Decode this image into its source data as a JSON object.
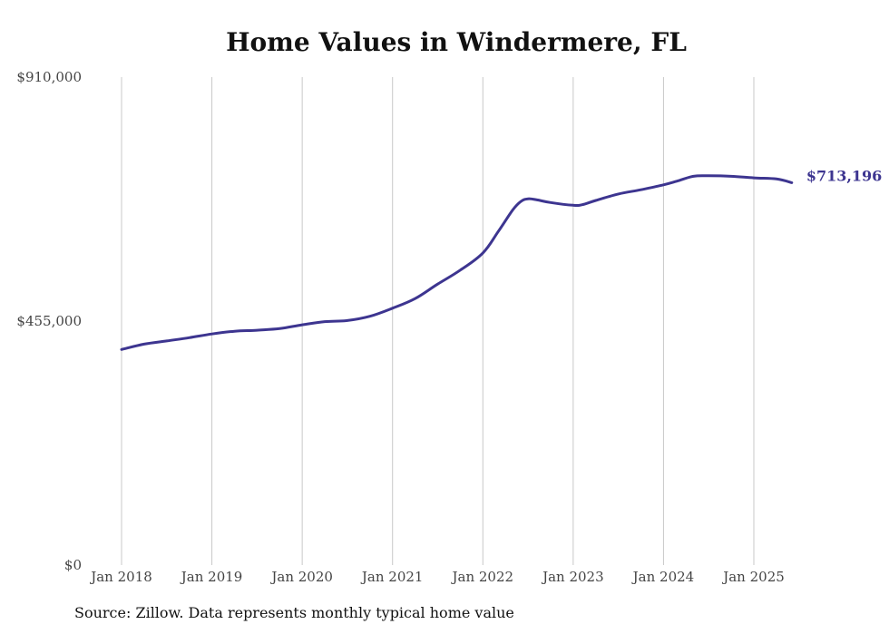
{
  "chart_data": {
    "type": "line",
    "title": "Home Values in Windermere, FL",
    "xlabel": "",
    "ylabel": "",
    "ylim": [
      0,
      910000
    ],
    "y_ticks": [
      {
        "value": 0,
        "label": "$0"
      },
      {
        "value": 455000,
        "label": "$455,000"
      },
      {
        "value": 910000,
        "label": "$910,000"
      }
    ],
    "x_ticks": [
      {
        "value": 2018.0,
        "label": "Jan 2018"
      },
      {
        "value": 2019.0,
        "label": "Jan 2019"
      },
      {
        "value": 2020.0,
        "label": "Jan 2020"
      },
      {
        "value": 2021.0,
        "label": "Jan 2021"
      },
      {
        "value": 2022.0,
        "label": "Jan 2022"
      },
      {
        "value": 2023.0,
        "label": "Jan 2023"
      },
      {
        "value": 2024.0,
        "label": "Jan 2024"
      },
      {
        "value": 2025.0,
        "label": "Jan 2025"
      }
    ],
    "grid": "vertical",
    "line_color": "#3d3590",
    "end_label": "$713,196",
    "series": [
      {
        "x": [
          2018.0,
          2018.25,
          2018.5,
          2018.75,
          2019.0,
          2019.25,
          2019.5,
          2019.75,
          2020.0,
          2020.25,
          2020.5,
          2020.75,
          2021.0,
          2021.25,
          2021.5,
          2021.75,
          2022.0,
          2022.17,
          2022.33,
          2022.42,
          2022.5,
          2022.6,
          2022.75,
          2023.0,
          2023.1,
          2023.25,
          2023.5,
          2023.75,
          2024.0,
          2024.15,
          2024.33,
          2024.5,
          2024.75,
          2025.0,
          2025.25,
          2025.42
        ],
        "values": [
          402000,
          412000,
          418000,
          424000,
          431000,
          436000,
          438000,
          441000,
          448000,
          454000,
          456000,
          464000,
          479000,
          497000,
          524000,
          550000,
          582000,
          622000,
          662000,
          678000,
          683000,
          681000,
          676000,
          671000,
          672000,
          680000,
          692000,
          700000,
          709000,
          716000,
          725000,
          726000,
          725000,
          722000,
          720000,
          713196
        ]
      }
    ]
  },
  "source": "Source: Zillow. Data represents monthly typical home value"
}
